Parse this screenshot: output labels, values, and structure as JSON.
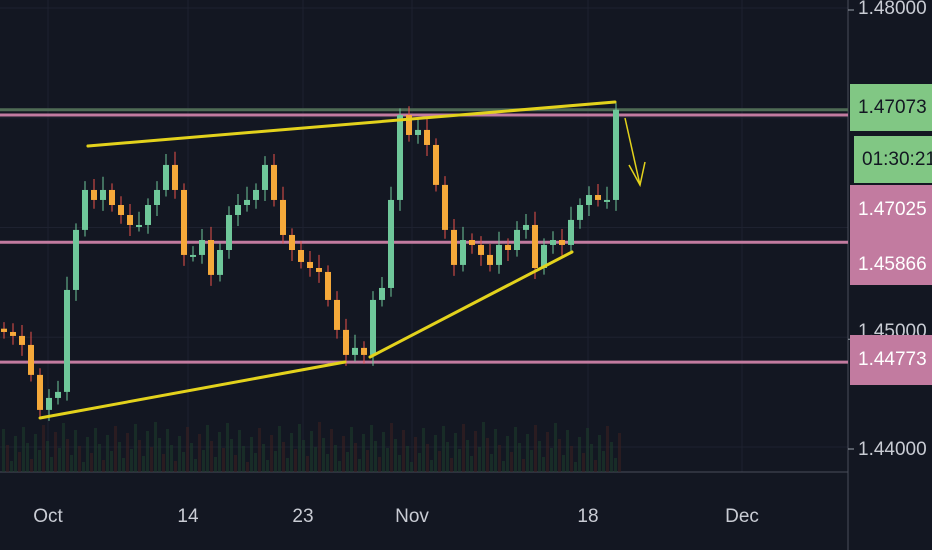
{
  "chart_data": {
    "type": "candlestick",
    "price_axis": {
      "range": [
        1.44,
        1.48
      ],
      "tick_labels": [
        "1.48000",
        "1.45000",
        "1.44000"
      ],
      "badges": [
        {
          "text": "1.47073",
          "color": "#81c784",
          "kind": "last-price"
        },
        {
          "text": "01:30:21",
          "color": "#81c784",
          "kind": "countdown"
        },
        {
          "text": "1.47025",
          "color": "#c27ba0",
          "kind": "level"
        },
        {
          "text": "1.45866",
          "color": "#c27ba0",
          "kind": "level"
        },
        {
          "text": "1.44773",
          "color": "#c27ba0",
          "kind": "level"
        }
      ]
    },
    "time_axis": {
      "tick_labels": [
        "Oct",
        "14",
        "23",
        "Nov",
        "18",
        "Dec"
      ]
    },
    "horizontal_levels": [
      {
        "price": 1.47073,
        "color": "#4f6b55"
      },
      {
        "price": 1.47025,
        "color": "#c27ba0"
      },
      {
        "price": 1.45866,
        "color": "#c27ba0"
      },
      {
        "price": 1.44773,
        "color": "#c27ba0"
      }
    ],
    "closes": [
      1.45048,
      1.45012,
      1.4493,
      1.44657,
      1.44338,
      1.44447,
      1.44502,
      1.45431,
      1.45978,
      1.46342,
      1.46251,
      1.46342,
      1.46205,
      1.46114,
      1.46023,
      1.46023,
      1.46205,
      1.46342,
      1.4657,
      1.46342,
      1.4575,
      1.4575,
      1.45886,
      1.45568,
      1.45795,
      1.46114,
      1.46205,
      1.46251,
      1.46342,
      1.4657,
      1.46251,
      1.45932,
      1.45795,
      1.45686,
      1.45631,
      1.45595,
      1.4534,
      1.45067,
      1.44839,
      1.44903,
      1.44839,
      1.4534,
      1.45449,
      1.46251,
      1.47025,
      1.46843,
      1.46889,
      1.46752,
      1.46388,
      1.45978,
      1.45659,
      1.45886,
      1.45841,
      1.4575,
      1.45659,
      1.45841,
      1.45795,
      1.45978,
      1.46023,
      1.45631,
      1.45841,
      1.45886,
      1.45841,
      1.46069,
      1.46205,
      1.46296,
      1.46251,
      1.46251,
      1.47073
    ],
    "colors": {
      "up": "#6fc79a",
      "down": "#f5a93a",
      "wick_down": "#e8514a",
      "trendline": "#e3d21c",
      "background": "#131722"
    }
  }
}
